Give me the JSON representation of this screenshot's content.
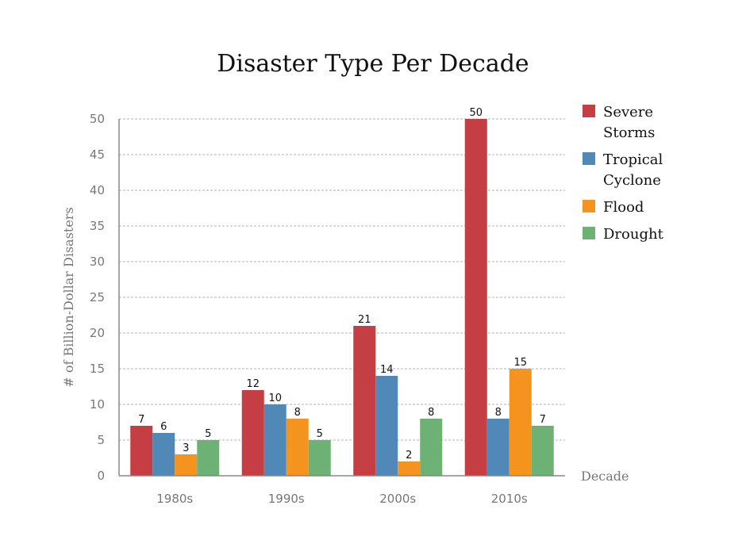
{
  "chart_data": {
    "type": "bar",
    "title": "Disaster Type Per Decade",
    "xlabel": "Decade",
    "ylabel": "# of Billion-Dollar Disasters",
    "categories": [
      "1980s",
      "1990s",
      "2000s",
      "2010s"
    ],
    "ylim": [
      0,
      50
    ],
    "yticks": [
      0,
      5,
      10,
      15,
      20,
      25,
      30,
      35,
      40,
      45,
      50
    ],
    "grid": true,
    "legend_position": "right",
    "series": [
      {
        "name": "Severe Storms",
        "label_lines": [
          "Severe",
          "Storms"
        ],
        "color": "#c43e44",
        "values": [
          7,
          12,
          21,
          50
        ]
      },
      {
        "name": "Tropical Cyclone",
        "label_lines": [
          "Tropical",
          "Cyclone"
        ],
        "color": "#5088b8",
        "values": [
          6,
          10,
          14,
          8
        ]
      },
      {
        "name": "Flood",
        "label_lines": [
          "Flood"
        ],
        "color": "#f5931f",
        "values": [
          3,
          8,
          2,
          15
        ]
      },
      {
        "name": "Drought",
        "label_lines": [
          "Drought"
        ],
        "color": "#6db274",
        "values": [
          5,
          5,
          8,
          7
        ]
      }
    ]
  }
}
